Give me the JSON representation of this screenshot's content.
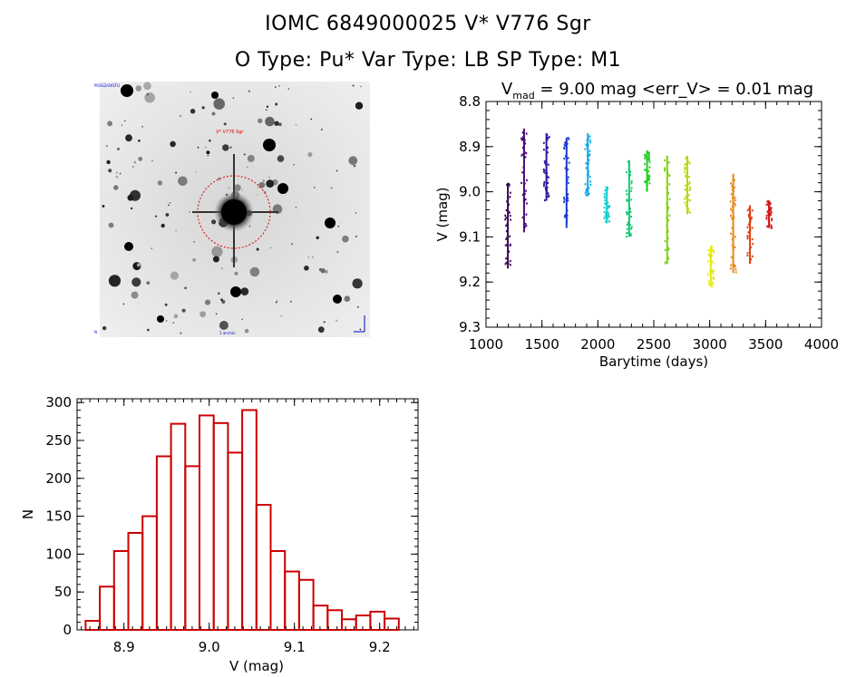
{
  "header": {
    "line1": "IOMC 6849000025    V* V776 Sgr",
    "line2": "O Type: Pu*  Var Type: LB  SP Type: M1"
  },
  "image_panel": {
    "description_name": "finder-chart"
  },
  "chart_data": [
    {
      "type": "scatter",
      "title": "V_mad = 9.00 mag <err_V> = 0.01 mag",
      "title_main": "V",
      "title_sub": "mad",
      "title_rest": " = 9.00 mag <err_V> = 0.01 mag",
      "xlabel": "Barytime (days)",
      "ylabel": "V (mag)",
      "xlim": [
        1000,
        4000
      ],
      "ylim": [
        9.3,
        8.8
      ],
      "xticks": [
        1000,
        1500,
        2000,
        2500,
        3000,
        3500,
        4000
      ],
      "yticks": [
        8.8,
        8.9,
        9.0,
        9.1,
        9.2,
        9.3
      ],
      "ytick_labels": [
        "8.8",
        "8.9",
        "9.0",
        "9.1",
        "9.2",
        "9.3"
      ],
      "clusters": [
        {
          "x": 1195,
          "ymin": 8.98,
          "ymax": 9.17,
          "color": "#3a0a55"
        },
        {
          "x": 1340,
          "ymin": 8.86,
          "ymax": 9.09,
          "color": "#4a0a78"
        },
        {
          "x": 1540,
          "ymin": 8.87,
          "ymax": 9.02,
          "color": "#2a1aa0"
        },
        {
          "x": 1720,
          "ymin": 8.88,
          "ymax": 9.08,
          "color": "#1a3ad0"
        },
        {
          "x": 1910,
          "ymin": 8.87,
          "ymax": 9.01,
          "color": "#10a8e8"
        },
        {
          "x": 2080,
          "ymin": 8.99,
          "ymax": 9.07,
          "color": "#10d0d0"
        },
        {
          "x": 2280,
          "ymin": 8.93,
          "ymax": 9.1,
          "color": "#10c870"
        },
        {
          "x": 2440,
          "ymin": 8.91,
          "ymax": 9.0,
          "color": "#20d020"
        },
        {
          "x": 2620,
          "ymin": 8.92,
          "ymax": 9.16,
          "color": "#80d010"
        },
        {
          "x": 2800,
          "ymin": 8.92,
          "ymax": 9.05,
          "color": "#b8d810"
        },
        {
          "x": 3010,
          "ymin": 9.12,
          "ymax": 9.21,
          "color": "#e8e810"
        },
        {
          "x": 3210,
          "ymin": 8.96,
          "ymax": 9.18,
          "color": "#e88810"
        },
        {
          "x": 3360,
          "ymin": 9.03,
          "ymax": 9.16,
          "color": "#e04010"
        },
        {
          "x": 3530,
          "ymin": 9.02,
          "ymax": 9.08,
          "color": "#d01818"
        }
      ]
    },
    {
      "type": "bar",
      "xlabel": "V (mag)",
      "ylabel": "N",
      "xlim": [
        8.845,
        9.245
      ],
      "ylim": [
        0,
        305
      ],
      "xticks": [
        8.9,
        9.0,
        9.1,
        9.2
      ],
      "xtick_labels": [
        "8.9",
        "9.0",
        "9.1",
        "9.2"
      ],
      "yticks": [
        0,
        50,
        100,
        150,
        200,
        250,
        300
      ],
      "bin_width": 0.0167,
      "bin_start": 8.855,
      "values": [
        12,
        57,
        104,
        128,
        150,
        229,
        272,
        216,
        283,
        273,
        234,
        290,
        165,
        104,
        77,
        66,
        32,
        26,
        14,
        19,
        24,
        15
      ],
      "bar_color": "#cc0000"
    }
  ]
}
